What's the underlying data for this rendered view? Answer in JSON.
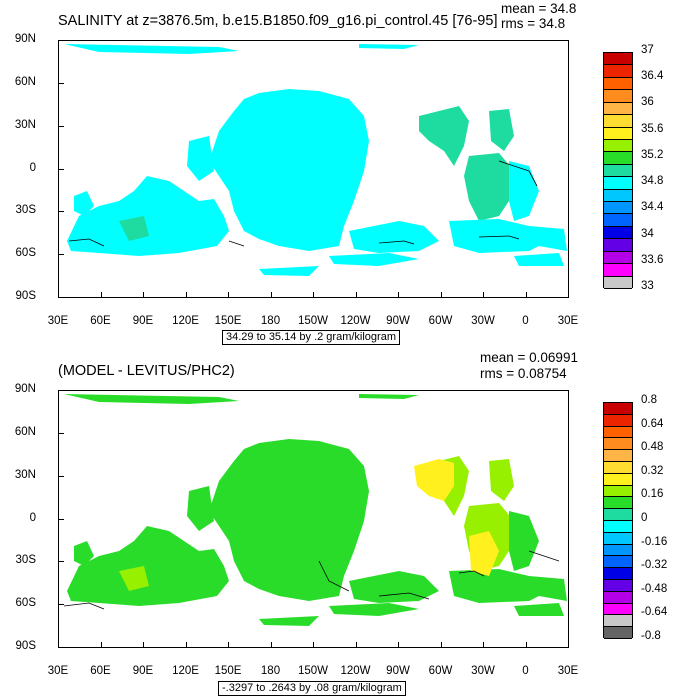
{
  "chart_data": [
    {
      "type": "heatmap",
      "title": "SALINITY at z=3876.5m, b.e15.B1850.f09_g16.pi_control.45 [76-95]",
      "stats": {
        "mean": "mean = 34.8",
        "rms": "rms = 34.8"
      },
      "range_label": "34.29 to 35.14 by .2 gram/kilogram",
      "y_ticks": [
        "90N",
        "60N",
        "30N",
        "0",
        "30S",
        "60S",
        "90S"
      ],
      "x_ticks": [
        "30E",
        "60E",
        "90E",
        "120E",
        "150E",
        "180",
        "150W",
        "120W",
        "90W",
        "60W",
        "30W",
        "0",
        "30E"
      ],
      "colorbar": {
        "labels": [
          "37",
          "36.4",
          "36",
          "35.6",
          "35.2",
          "34.8",
          "34.4",
          "34",
          "33.6",
          "33"
        ],
        "colors": [
          "#c80000",
          "#ec2400",
          "#ff6000",
          "#ff8c1e",
          "#ffb446",
          "#ffdc32",
          "#fff01e",
          "#96f000",
          "#2adc2a",
          "#1edca0",
          "#00ffff",
          "#00c8ff",
          "#0096ff",
          "#0064ff",
          "#0000e6",
          "#6400e6",
          "#b400e6",
          "#ff00ff",
          "#c8c8c8",
          "#646464"
        ],
        "dominant_color": "#00ffff",
        "secondary_color": "#1edca0"
      },
      "ylim": [
        "90S",
        "90N"
      ],
      "xlim": [
        "30E",
        "30E"
      ]
    },
    {
      "type": "heatmap",
      "title": "(MODEL - LEVITUS/PHC2)",
      "stats": {
        "mean": "mean = 0.06991",
        "rms": "rms = 0.08754"
      },
      "range_label": "-.3297 to .2643 by .08 gram/kilogram",
      "y_ticks": [
        "90N",
        "60N",
        "30N",
        "0",
        "30S",
        "60S",
        "90S"
      ],
      "x_ticks": [
        "30E",
        "60E",
        "90E",
        "120E",
        "150E",
        "180",
        "150W",
        "120W",
        "90W",
        "60W",
        "30W",
        "0",
        "30E"
      ],
      "colorbar": {
        "labels": [
          "0.8",
          "0.64",
          "0.48",
          "0.32",
          "0.16",
          "0",
          "-0.16",
          "-0.32",
          "-0.48",
          "-0.64",
          "-0.8"
        ],
        "colors": [
          "#c80000",
          "#ec2400",
          "#ff6000",
          "#ff8c1e",
          "#ffb446",
          "#ffdc32",
          "#fff01e",
          "#96f000",
          "#2adc2a",
          "#1edca0",
          "#00ffff",
          "#00c8ff",
          "#0096ff",
          "#0064ff",
          "#0000e6",
          "#6400e6",
          "#b400e6",
          "#ff00ff",
          "#c8c8c8",
          "#646464"
        ],
        "dominant_color": "#2adc2a",
        "secondary_color": "#96f000",
        "highlight_color": "#fff01e"
      },
      "ylim": [
        "90S",
        "90N"
      ],
      "xlim": [
        "30E",
        "30E"
      ]
    }
  ]
}
